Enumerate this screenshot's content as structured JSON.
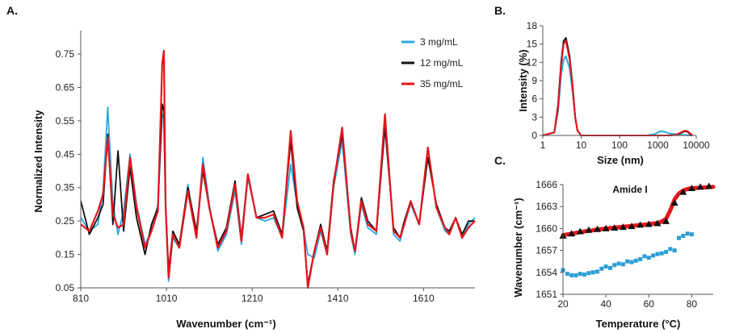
{
  "colors": {
    "c3": "#29a9e0",
    "c12": "#111111",
    "c35": "#e8151b",
    "blue_markers": "#2a9fd6",
    "red_fit": "#e8151b"
  },
  "chart_data": [
    {
      "panel_label": "A.",
      "type": "line",
      "xlabel": "Wavenumber (cm⁻¹)",
      "ylabel": "Normalized Intensity",
      "xlim": [
        810,
        1730
      ],
      "ylim": [
        0.05,
        0.82
      ],
      "xticks": [
        810,
        1010,
        1210,
        1410,
        1610
      ],
      "yticks": [
        0.05,
        0.15,
        0.25,
        0.35,
        0.45,
        0.55,
        0.65,
        0.75
      ],
      "ytick_labels": [
        "0.05",
        "0.15",
        "0.25",
        "0.35",
        "0.45",
        "0.55",
        "0.65",
        "0.75"
      ],
      "legend_position": "top-right",
      "series": [
        {
          "name": "3 mg/mL",
          "color": "#29a9e0",
          "x": [
            810,
            830,
            850,
            862,
            873,
            885,
            897,
            910,
            925,
            940,
            960,
            975,
            990,
            1000,
            1004,
            1008,
            1015,
            1025,
            1040,
            1060,
            1080,
            1095,
            1110,
            1130,
            1150,
            1170,
            1185,
            1200,
            1220,
            1240,
            1260,
            1280,
            1300,
            1315,
            1330,
            1340,
            1355,
            1370,
            1385,
            1400,
            1420,
            1440,
            1450,
            1465,
            1480,
            1500,
            1520,
            1540,
            1555,
            1565,
            1580,
            1600,
            1620,
            1640,
            1660,
            1670,
            1685,
            1700,
            1715,
            1730
          ],
          "y": [
            0.26,
            0.22,
            0.24,
            0.34,
            0.59,
            0.3,
            0.21,
            0.28,
            0.45,
            0.3,
            0.18,
            0.22,
            0.3,
            0.57,
            0.56,
            0.28,
            0.07,
            0.2,
            0.17,
            0.36,
            0.2,
            0.44,
            0.3,
            0.16,
            0.21,
            0.34,
            0.18,
            0.38,
            0.26,
            0.25,
            0.26,
            0.2,
            0.42,
            0.3,
            0.23,
            0.15,
            0.14,
            0.22,
            0.15,
            0.35,
            0.49,
            0.21,
            0.15,
            0.3,
            0.23,
            0.21,
            0.56,
            0.21,
            0.19,
            0.24,
            0.3,
            0.24,
            0.47,
            0.29,
            0.22,
            0.21,
            0.26,
            0.2,
            0.24,
            0.26
          ]
        },
        {
          "name": "12 mg/mL",
          "color": "#111111",
          "x": [
            810,
            830,
            850,
            862,
            873,
            885,
            897,
            910,
            925,
            940,
            960,
            975,
            990,
            1000,
            1004,
            1008,
            1015,
            1025,
            1040,
            1060,
            1080,
            1095,
            1110,
            1130,
            1150,
            1170,
            1185,
            1200,
            1220,
            1240,
            1260,
            1280,
            1300,
            1315,
            1330,
            1340,
            1355,
            1370,
            1385,
            1400,
            1420,
            1440,
            1450,
            1465,
            1480,
            1500,
            1520,
            1540,
            1555,
            1565,
            1580,
            1600,
            1620,
            1640,
            1660,
            1670,
            1685,
            1700,
            1715,
            1730
          ],
          "y": [
            0.31,
            0.21,
            0.26,
            0.3,
            0.51,
            0.24,
            0.46,
            0.22,
            0.41,
            0.26,
            0.15,
            0.24,
            0.29,
            0.6,
            0.58,
            0.3,
            0.1,
            0.22,
            0.18,
            0.35,
            0.22,
            0.4,
            0.29,
            0.18,
            0.23,
            0.37,
            0.2,
            0.39,
            0.26,
            0.27,
            0.28,
            0.21,
            0.49,
            0.29,
            0.22,
            0.06,
            0.16,
            0.24,
            0.16,
            0.37,
            0.51,
            0.23,
            0.16,
            0.32,
            0.25,
            0.22,
            0.53,
            0.23,
            0.2,
            0.25,
            0.31,
            0.24,
            0.44,
            0.3,
            0.23,
            0.22,
            0.26,
            0.21,
            0.25,
            0.25
          ]
        },
        {
          "name": "35 mg/mL",
          "color": "#e8151b",
          "x": [
            810,
            830,
            850,
            862,
            873,
            885,
            897,
            910,
            925,
            940,
            960,
            975,
            990,
            1000,
            1004,
            1008,
            1015,
            1025,
            1040,
            1060,
            1080,
            1095,
            1110,
            1130,
            1150,
            1170,
            1185,
            1200,
            1220,
            1240,
            1260,
            1280,
            1300,
            1315,
            1330,
            1340,
            1355,
            1370,
            1385,
            1400,
            1420,
            1440,
            1450,
            1465,
            1480,
            1500,
            1520,
            1540,
            1555,
            1565,
            1580,
            1600,
            1620,
            1640,
            1660,
            1670,
            1685,
            1700,
            1715,
            1730
          ],
          "y": [
            0.24,
            0.22,
            0.28,
            0.33,
            0.5,
            0.27,
            0.23,
            0.24,
            0.44,
            0.29,
            0.17,
            0.22,
            0.28,
            0.72,
            0.76,
            0.3,
            0.08,
            0.21,
            0.17,
            0.34,
            0.2,
            0.42,
            0.29,
            0.17,
            0.22,
            0.36,
            0.19,
            0.39,
            0.26,
            0.26,
            0.27,
            0.2,
            0.52,
            0.31,
            0.23,
            0.05,
            0.16,
            0.23,
            0.15,
            0.36,
            0.53,
            0.22,
            0.16,
            0.31,
            0.24,
            0.22,
            0.57,
            0.22,
            0.2,
            0.24,
            0.31,
            0.24,
            0.47,
            0.29,
            0.23,
            0.21,
            0.26,
            0.2,
            0.23,
            0.25
          ]
        }
      ]
    },
    {
      "panel_label": "B.",
      "type": "line",
      "xlabel": "Size (nm)",
      "ylabel": "Intensity (%)",
      "xscale": "log",
      "xlim": [
        1,
        10000
      ],
      "ylim": [
        0,
        18
      ],
      "xticks": [
        1,
        10,
        100,
        1000,
        10000
      ],
      "xtick_labels": [
        "1",
        "10",
        "100",
        "1000",
        "10000"
      ],
      "yticks": [
        0,
        3,
        6,
        9,
        12,
        15,
        18
      ],
      "series": [
        {
          "color": "#29a9e0",
          "x": [
            1,
            2,
            2.5,
            3,
            3.5,
            4,
            5,
            6,
            7,
            8,
            10,
            100,
            500,
            800,
            1000,
            1200,
            1500,
            2000,
            4000,
            8000
          ],
          "y": [
            0,
            0.5,
            4,
            10,
            12.5,
            13,
            11,
            7,
            3,
            0.8,
            0,
            0,
            0,
            0.2,
            0.5,
            0.7,
            0.6,
            0.3,
            0.1,
            0
          ]
        },
        {
          "color": "#111111",
          "x": [
            1,
            2,
            2.5,
            3,
            3.5,
            4,
            5,
            6,
            7,
            8,
            10,
            100,
            1000,
            2000,
            3000,
            4000,
            5000,
            6000,
            7000,
            8000
          ],
          "y": [
            0,
            0.5,
            5,
            12,
            15.5,
            16,
            13,
            8,
            3,
            0.8,
            0,
            0,
            0,
            0,
            0.1,
            0.4,
            0.7,
            0.6,
            0.2,
            0
          ]
        },
        {
          "color": "#e8151b",
          "x": [
            1,
            2,
            2.5,
            3,
            3.5,
            4,
            5,
            6,
            7,
            8,
            10,
            100,
            1000,
            2000,
            3000,
            4000,
            5000,
            6000,
            7000,
            8000
          ],
          "y": [
            0,
            0.5,
            4.5,
            11.5,
            15,
            15.5,
            12.5,
            8,
            3,
            0.8,
            0,
            0,
            0,
            0,
            0.1,
            0.5,
            0.8,
            0.7,
            0.3,
            0
          ]
        }
      ]
    },
    {
      "panel_label": "C.",
      "type": "scatter",
      "annotation": "Amide I",
      "xlabel": "Temperature (°C)",
      "ylabel": "Wavenumber (cm⁻¹)",
      "xlim": [
        20,
        90
      ],
      "ylim": [
        1651,
        1666
      ],
      "xticks": [
        20,
        40,
        60,
        80
      ],
      "yticks": [
        1651,
        1654,
        1657,
        1660,
        1663,
        1666
      ],
      "series": [
        {
          "marker": "triangle",
          "color": "#111111",
          "x": [
            20,
            24,
            28,
            32,
            36,
            40,
            44,
            48,
            52,
            56,
            60,
            64,
            68,
            72,
            76,
            80,
            84,
            88
          ],
          "y": [
            1659.0,
            1659.3,
            1659.6,
            1659.8,
            1659.9,
            1660.0,
            1660.1,
            1660.2,
            1660.3,
            1660.5,
            1660.6,
            1660.7,
            1661.0,
            1663.5,
            1665.0,
            1665.5,
            1665.7,
            1665.8
          ]
        },
        {
          "marker": "line",
          "color": "#e8151b",
          "x": [
            20,
            30,
            40,
            50,
            60,
            65,
            68,
            70,
            72,
            74,
            76,
            78,
            80,
            85,
            90
          ],
          "y": [
            1659.1,
            1659.6,
            1660.0,
            1660.3,
            1660.6,
            1660.8,
            1661.3,
            1662.5,
            1664.0,
            1664.8,
            1665.2,
            1665.4,
            1665.5,
            1665.6,
            1665.7
          ]
        },
        {
          "marker": "square",
          "color": "#2a9fd6",
          "x": [
            20,
            22,
            24,
            26,
            28,
            30,
            32,
            34,
            36,
            38,
            40,
            42,
            44,
            46,
            48,
            50,
            52,
            54,
            56,
            58,
            60,
            62,
            64,
            66,
            68,
            70,
            72,
            74,
            76,
            78,
            80
          ],
          "y": [
            1654.3,
            1653.8,
            1653.6,
            1653.6,
            1653.8,
            1653.7,
            1653.9,
            1654.0,
            1654.1,
            1654.5,
            1654.8,
            1654.6,
            1655.0,
            1655.2,
            1655.1,
            1655.5,
            1655.4,
            1655.6,
            1655.8,
            1656.2,
            1656.0,
            1656.3,
            1656.5,
            1656.6,
            1656.8,
            1657.2,
            1657.0,
            1658.7,
            1659.0,
            1659.3,
            1659.2
          ]
        }
      ]
    }
  ]
}
